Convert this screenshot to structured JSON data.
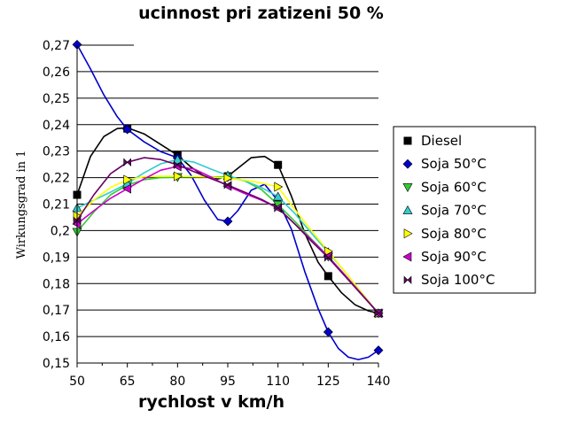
{
  "chart_data": {
    "type": "line",
    "title": "ucinnost pri zatizeni 50 %",
    "xlabel": "rychlost v km/h",
    "ylabel": "Wirkungsgrad in 1",
    "xlim": [
      50,
      140
    ],
    "ylim": [
      0.15,
      0.27
    ],
    "x_ticks": [
      "50",
      "65",
      "80",
      "95",
      "110",
      "125",
      "140"
    ],
    "y_ticks": [
      "0,15",
      "0,16",
      "0,17",
      "0,18",
      "0,19",
      "0,2",
      "0,21",
      "0,22",
      "0,23",
      "0,24",
      "0,25",
      "0,26",
      "0,27"
    ],
    "legend_position": "right",
    "grid": "horizontal",
    "series": [
      {
        "name": "Diesel",
        "color": "#000000",
        "marker": "square",
        "x": [
          50,
          65,
          80,
          95,
          110,
          125,
          140
        ],
        "y": [
          0.2135,
          0.2385,
          0.2285,
          0.2205,
          0.2248,
          0.1828,
          0.1688
        ],
        "curve_x": [
          50,
          54,
          58,
          62,
          65,
          70,
          75,
          80,
          84,
          88,
          92,
          95,
          98,
          102,
          106,
          110,
          114,
          118,
          122,
          125,
          129,
          133,
          137,
          140
        ],
        "curve_y": [
          0.2135,
          0.228,
          0.2355,
          0.2385,
          0.2388,
          0.2365,
          0.2325,
          0.2285,
          0.224,
          0.2205,
          0.2195,
          0.2205,
          0.2235,
          0.2275,
          0.228,
          0.2248,
          0.213,
          0.199,
          0.188,
          0.1828,
          0.1765,
          0.172,
          0.1697,
          0.1688
        ]
      },
      {
        "name": "Soja 50°C",
        "color": "#0000cc",
        "marker": "diamond",
        "x": [
          50,
          65,
          80,
          95,
          110,
          125,
          140
        ],
        "y": [
          0.2702,
          0.2382,
          0.2275,
          0.2035,
          0.2112,
          0.1617,
          0.1548
        ],
        "curve_x": [
          50,
          54,
          58,
          62,
          65,
          70,
          75,
          80,
          84,
          88,
          92,
          95,
          98,
          102,
          106,
          110,
          114,
          118,
          122,
          125,
          128,
          131,
          134,
          137,
          140
        ],
        "curve_y": [
          0.2702,
          0.261,
          0.2512,
          0.243,
          0.2382,
          0.2335,
          0.2298,
          0.2275,
          0.221,
          0.2115,
          0.2042,
          0.2035,
          0.2075,
          0.2152,
          0.2175,
          0.2112,
          0.2005,
          0.1845,
          0.1705,
          0.1617,
          0.1555,
          0.1522,
          0.1513,
          0.1522,
          0.1548
        ]
      },
      {
        "name": "Soja 60°C",
        "color": "#33cc33",
        "marker": "triangle-down",
        "x": [
          50,
          65,
          80,
          95,
          110,
          125,
          140
        ],
        "y": [
          0.1995,
          0.2172,
          0.2202,
          0.2202,
          0.2098,
          0.1902,
          0.1688
        ],
        "curve_x": [
          50,
          55,
          60,
          65,
          70,
          75,
          80,
          85,
          90,
          95,
          100,
          105,
          110,
          115,
          120,
          125,
          130,
          135,
          140
        ],
        "curve_y": [
          0.1995,
          0.207,
          0.2135,
          0.2172,
          0.2192,
          0.22,
          0.2202,
          0.2203,
          0.2203,
          0.2202,
          0.2188,
          0.2155,
          0.2098,
          0.2035,
          0.1968,
          0.1902,
          0.1832,
          0.176,
          0.1688
        ]
      },
      {
        "name": "Soja 70°C",
        "color": "#33cccc",
        "marker": "triangle-up",
        "x": [
          50,
          65,
          80,
          95,
          110,
          125,
          140
        ],
        "y": [
          0.2085,
          0.2178,
          0.2268,
          0.2208,
          0.2128,
          0.1918,
          0.1688
        ],
        "curve_x": [
          50,
          55,
          60,
          65,
          70,
          75,
          80,
          85,
          90,
          95,
          100,
          105,
          110,
          115,
          120,
          125,
          130,
          135,
          140
        ],
        "curve_y": [
          0.2085,
          0.2115,
          0.2145,
          0.2178,
          0.2218,
          0.2252,
          0.2268,
          0.2258,
          0.2232,
          0.2208,
          0.2188,
          0.2163,
          0.2128,
          0.2065,
          0.199,
          0.1918,
          0.1845,
          0.1765,
          0.1688
        ]
      },
      {
        "name": "Soja 80°C",
        "color": "#ffff00",
        "marker": "triangle-right",
        "x": [
          50,
          65,
          80,
          95,
          110,
          125,
          140
        ],
        "y": [
          0.2055,
          0.2192,
          0.2205,
          0.2198,
          0.2165,
          0.1922,
          0.1688
        ],
        "curve_x": [
          50,
          55,
          60,
          65,
          70,
          75,
          80,
          85,
          90,
          95,
          100,
          105,
          110,
          115,
          120,
          125,
          130,
          135,
          140
        ],
        "curve_y": [
          0.2055,
          0.2115,
          0.2163,
          0.2192,
          0.2203,
          0.2205,
          0.2205,
          0.2204,
          0.2202,
          0.2198,
          0.219,
          0.218,
          0.2165,
          0.208,
          0.2,
          0.1922,
          0.1845,
          0.1765,
          0.1688
        ]
      },
      {
        "name": "Soja 90°C",
        "color": "#cc00cc",
        "marker": "triangle-left",
        "x": [
          50,
          65,
          80,
          95,
          110,
          125,
          140
        ],
        "y": [
          0.2025,
          0.2158,
          0.2242,
          0.2168,
          0.2085,
          0.1902,
          0.1688
        ],
        "curve_x": [
          50,
          55,
          60,
          65,
          70,
          75,
          80,
          85,
          90,
          95,
          100,
          105,
          110,
          115,
          120,
          125,
          130,
          135,
          140
        ],
        "curve_y": [
          0.2025,
          0.2075,
          0.2122,
          0.2158,
          0.2195,
          0.2228,
          0.2242,
          0.2232,
          0.2202,
          0.2168,
          0.214,
          0.2115,
          0.2085,
          0.2025,
          0.1965,
          0.1902,
          0.1832,
          0.176,
          0.1688
        ]
      },
      {
        "name": "Soja 100°C",
        "color": "#660066",
        "marker": "bowtie",
        "x": [
          50,
          65,
          80,
          95,
          110,
          125,
          140
        ],
        "y": [
          0.2038,
          0.2258,
          0.2248,
          0.2172,
          0.2085,
          0.1898,
          0.1688
        ],
        "curve_x": [
          50,
          55,
          60,
          65,
          70,
          75,
          80,
          85,
          90,
          95,
          100,
          105,
          110,
          115,
          120,
          125,
          130,
          135,
          140
        ],
        "curve_y": [
          0.2038,
          0.2135,
          0.2215,
          0.2258,
          0.2275,
          0.2268,
          0.2248,
          0.2222,
          0.2196,
          0.2172,
          0.2145,
          0.2118,
          0.2085,
          0.2025,
          0.196,
          0.1898,
          0.1828,
          0.1758,
          0.1688
        ]
      }
    ]
  }
}
